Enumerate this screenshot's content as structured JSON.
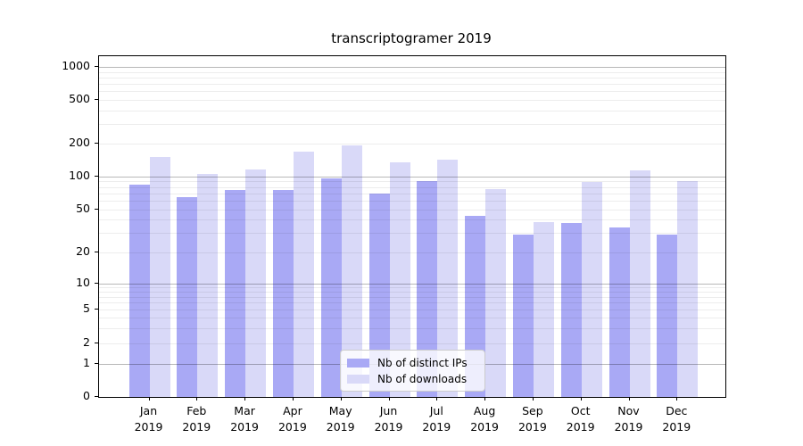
{
  "colors": {
    "distinct_ips": "#a9a9f5",
    "downloads": "#d9d9f8",
    "grid_major": "#b3b3b3",
    "grid_minor": "#ebebeb",
    "axis": "#000000",
    "legend_border": "#cccccc"
  },
  "chart_data": {
    "type": "bar",
    "title": "transcriptogramer 2019",
    "categories": [
      "Jan",
      "Feb",
      "Mar",
      "Apr",
      "May",
      "Jun",
      "Jul",
      "Aug",
      "Sep",
      "Oct",
      "Nov",
      "Dec"
    ],
    "year_label": "2019",
    "series": [
      {
        "name": "Nb of distinct IPs",
        "color": "#a9a9f5",
        "values": [
          84,
          65,
          75,
          75,
          95,
          70,
          90,
          43,
          29,
          37,
          34,
          29
        ]
      },
      {
        "name": "Nb of downloads",
        "color": "#d9d9f8",
        "values": [
          150,
          106,
          116,
          170,
          195,
          134,
          143,
          77,
          38,
          89,
          114,
          90
        ]
      }
    ],
    "yticks": [
      0,
      1,
      2,
      5,
      10,
      20,
      50,
      100,
      200,
      500,
      1000
    ],
    "yscale": "symlog",
    "ylim": [
      0,
      1250
    ],
    "grid": true,
    "legend_position": "lower center"
  }
}
